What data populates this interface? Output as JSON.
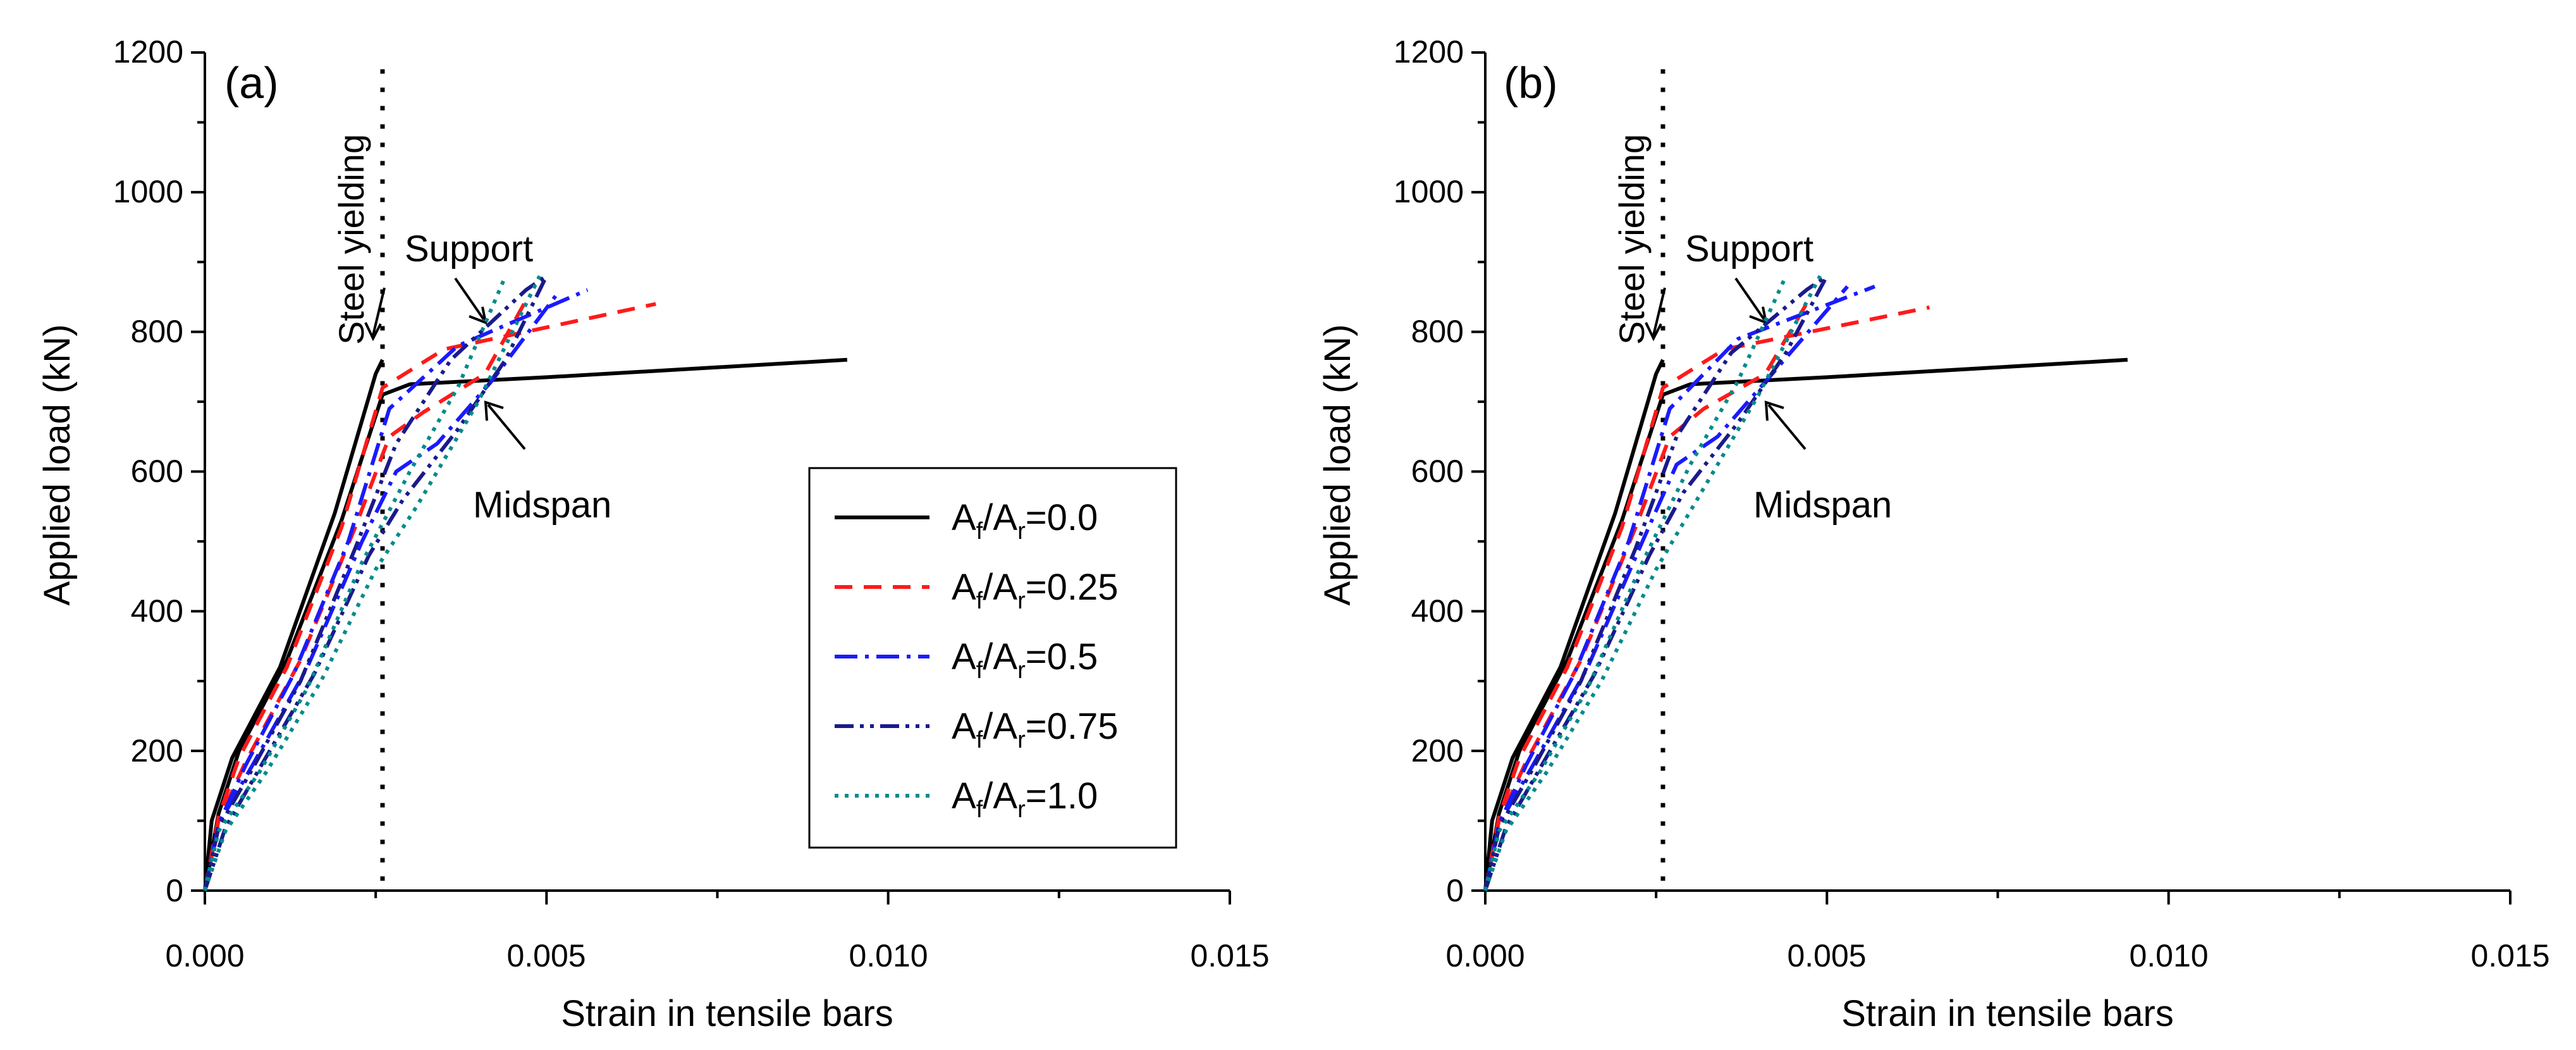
{
  "chart_data": [
    {
      "type": "line",
      "panel_label": "(a)",
      "xlabel": "Strain in tensile bars",
      "ylabel": "Applied load (kN)",
      "xlim": [
        0,
        0.015
      ],
      "ylim": [
        0,
        1200
      ],
      "xticks": [
        "0.000",
        "0.005",
        "0.010",
        "0.015"
      ],
      "yticks": [
        "0",
        "200",
        "400",
        "600",
        "800",
        "1000",
        "1200"
      ],
      "yield_strain": 0.0026,
      "annotations": {
        "yield": "Steel yielding",
        "support": "Support",
        "midspan": "Midspan"
      },
      "legend": {
        "placement": "center-right",
        "entries": [
          {
            "label": "A",
            "sub1": "f",
            "mid": "/A",
            "sub2": "r",
            "value": "=0.0"
          },
          {
            "label": "A",
            "sub1": "f",
            "mid": "/A",
            "sub2": "r",
            "value": "=0.25"
          },
          {
            "label": "A",
            "sub1": "f",
            "mid": "/A",
            "sub2": "r",
            "value": "=0.5"
          },
          {
            "label": "A",
            "sub1": "f",
            "mid": "/A",
            "sub2": "r",
            "value": "=0.75"
          },
          {
            "label": "A",
            "sub1": "f",
            "mid": "/A",
            "sub2": "r",
            "value": "=1.0"
          }
        ]
      },
      "series": [
        {
          "name": "Af/Ar=0.0",
          "color": "#000000",
          "dash": "solid",
          "support": [
            [
              0,
              0
            ],
            [
              0.0001,
              100
            ],
            [
              0.0004,
              190
            ],
            [
              0.0011,
              320
            ],
            [
              0.0019,
              540
            ],
            [
              0.0025,
              740
            ],
            [
              0.0026,
              760
            ]
          ],
          "midspan": [
            [
              0,
              0
            ],
            [
              0.0002,
              110
            ],
            [
              0.0005,
              200
            ],
            [
              0.0012,
              330
            ],
            [
              0.002,
              530
            ],
            [
              0.0026,
              710
            ],
            [
              0.003,
              725
            ],
            [
              0.005,
              735
            ],
            [
              0.0094,
              760
            ]
          ]
        },
        {
          "name": "Af/Ar=0.25",
          "color": "#ff1a1a",
          "dash": "dashed",
          "support": [
            [
              0,
              0
            ],
            [
              0.0002,
              105
            ],
            [
              0.0005,
              190
            ],
            [
              0.0012,
              320
            ],
            [
              0.002,
              520
            ],
            [
              0.0026,
              720
            ],
            [
              0.0035,
              775
            ],
            [
              0.0066,
              840
            ]
          ],
          "midspan": [
            [
              0,
              0
            ],
            [
              0.0002,
              100
            ],
            [
              0.0006,
              185
            ],
            [
              0.0014,
              330
            ],
            [
              0.0022,
              520
            ],
            [
              0.0027,
              650
            ],
            [
              0.0032,
              685
            ],
            [
              0.0041,
              740
            ],
            [
              0.0047,
              845
            ]
          ]
        },
        {
          "name": "Af/Ar=0.5",
          "color": "#1a1aff",
          "dash": "dashdot",
          "support": [
            [
              0,
              0
            ],
            [
              0.0002,
              95
            ],
            [
              0.0006,
              180
            ],
            [
              0.0013,
              310
            ],
            [
              0.0021,
              500
            ],
            [
              0.0027,
              690
            ],
            [
              0.0037,
              780
            ],
            [
              0.0056,
              860
            ]
          ],
          "midspan": [
            [
              0,
              0
            ],
            [
              0.0002,
              95
            ],
            [
              0.0007,
              180
            ],
            [
              0.0015,
              320
            ],
            [
              0.0023,
              500
            ],
            [
              0.0028,
              600
            ],
            [
              0.0034,
              640
            ],
            [
              0.0042,
              730
            ],
            [
              0.0052,
              860
            ]
          ]
        },
        {
          "name": "Af/Ar=0.75",
          "color": "#1a1a8c",
          "dash": "dashdotdot",
          "support": [
            [
              0,
              0
            ],
            [
              0.0002,
              90
            ],
            [
              0.0007,
              175
            ],
            [
              0.0014,
              300
            ],
            [
              0.0022,
              490
            ],
            [
              0.0028,
              640
            ],
            [
              0.0036,
              760
            ],
            [
              0.0047,
              860
            ],
            [
              0.005,
              880
            ]
          ],
          "midspan": [
            [
              0,
              0
            ],
            [
              0.0003,
              90
            ],
            [
              0.0008,
              175
            ],
            [
              0.0016,
              310
            ],
            [
              0.0024,
              480
            ],
            [
              0.0029,
              560
            ],
            [
              0.0037,
              660
            ],
            [
              0.0044,
              760
            ],
            [
              0.005,
              880
            ]
          ]
        },
        {
          "name": "Af/Ar=1.0",
          "color": "#008b8b",
          "dash": "dotted",
          "support": [
            [
              0,
              0
            ],
            [
              0.0002,
              85
            ],
            [
              0.0008,
              170
            ],
            [
              0.0015,
              290
            ],
            [
              0.0023,
              470
            ],
            [
              0.003,
              600
            ],
            [
              0.0037,
              720
            ],
            [
              0.0044,
              880
            ]
          ],
          "midspan": [
            [
              0,
              0
            ],
            [
              0.0003,
              85
            ],
            [
              0.0009,
              170
            ],
            [
              0.0017,
              300
            ],
            [
              0.0025,
              460
            ],
            [
              0.0031,
              550
            ],
            [
              0.004,
              700
            ],
            [
              0.0049,
              880
            ]
          ]
        }
      ]
    },
    {
      "type": "line",
      "panel_label": "(b)",
      "xlabel": "Strain in tensile bars",
      "ylabel": "Applied load (kN)",
      "xlim": [
        0,
        0.015
      ],
      "ylim": [
        0,
        1200
      ],
      "xticks": [
        "0.000",
        "0.005",
        "0.010",
        "0.015"
      ],
      "yticks": [
        "0",
        "200",
        "400",
        "600",
        "800",
        "1000",
        "1200"
      ],
      "yield_strain": 0.0026,
      "annotations": {
        "yield": "Steel yielding",
        "support": "Support",
        "midspan": "Midspan"
      },
      "series": [
        {
          "name": "Af/Ar=0.0",
          "color": "#000000",
          "dash": "solid",
          "support": [
            [
              0,
              0
            ],
            [
              0.0001,
              100
            ],
            [
              0.0004,
              190
            ],
            [
              0.0011,
              320
            ],
            [
              0.0019,
              540
            ],
            [
              0.0025,
              740
            ],
            [
              0.0026,
              760
            ]
          ],
          "midspan": [
            [
              0,
              0
            ],
            [
              0.0002,
              110
            ],
            [
              0.0005,
              200
            ],
            [
              0.0012,
              330
            ],
            [
              0.002,
              530
            ],
            [
              0.0026,
              710
            ],
            [
              0.003,
              725
            ],
            [
              0.005,
              735
            ],
            [
              0.0094,
              760
            ]
          ]
        },
        {
          "name": "Af/Ar=0.25",
          "color": "#ff1a1a",
          "dash": "dashed",
          "support": [
            [
              0,
              0
            ],
            [
              0.0002,
              105
            ],
            [
              0.0005,
              190
            ],
            [
              0.0012,
              320
            ],
            [
              0.002,
              520
            ],
            [
              0.0026,
              720
            ],
            [
              0.0035,
              775
            ],
            [
              0.0065,
              835
            ]
          ],
          "midspan": [
            [
              0,
              0
            ],
            [
              0.0002,
              100
            ],
            [
              0.0006,
              185
            ],
            [
              0.0014,
              330
            ],
            [
              0.0022,
              520
            ],
            [
              0.0027,
              650
            ],
            [
              0.0032,
              690
            ],
            [
              0.0041,
              740
            ],
            [
              0.0047,
              840
            ]
          ]
        },
        {
          "name": "Af/Ar=0.5",
          "color": "#1a1aff",
          "dash": "dashdot",
          "support": [
            [
              0,
              0
            ],
            [
              0.0002,
              95
            ],
            [
              0.0006,
              180
            ],
            [
              0.0013,
              310
            ],
            [
              0.0021,
              500
            ],
            [
              0.0027,
              690
            ],
            [
              0.0037,
              790
            ],
            [
              0.0057,
              865
            ]
          ],
          "midspan": [
            [
              0,
              0
            ],
            [
              0.0002,
              95
            ],
            [
              0.0007,
              180
            ],
            [
              0.0015,
              320
            ],
            [
              0.0023,
              500
            ],
            [
              0.0028,
              610
            ],
            [
              0.0034,
              650
            ],
            [
              0.0042,
              740
            ],
            [
              0.0053,
              865
            ]
          ]
        },
        {
          "name": "Af/Ar=0.75",
          "color": "#1a1a8c",
          "dash": "dashdotdot",
          "support": [
            [
              0,
              0
            ],
            [
              0.0002,
              90
            ],
            [
              0.0007,
              175
            ],
            [
              0.0014,
              300
            ],
            [
              0.0022,
              490
            ],
            [
              0.0028,
              650
            ],
            [
              0.0036,
              770
            ],
            [
              0.0047,
              860
            ],
            [
              0.005,
              880
            ]
          ],
          "midspan": [
            [
              0,
              0
            ],
            [
              0.0003,
              90
            ],
            [
              0.0008,
              175
            ],
            [
              0.0016,
              310
            ],
            [
              0.0024,
              480
            ],
            [
              0.0029,
              570
            ],
            [
              0.0037,
              670
            ],
            [
              0.0044,
              770
            ],
            [
              0.005,
              880
            ]
          ]
        },
        {
          "name": "Af/Ar=1.0",
          "color": "#008b8b",
          "dash": "dotted",
          "support": [
            [
              0,
              0
            ],
            [
              0.0002,
              85
            ],
            [
              0.0008,
              170
            ],
            [
              0.0015,
              290
            ],
            [
              0.0023,
              470
            ],
            [
              0.003,
              610
            ],
            [
              0.0037,
              730
            ],
            [
              0.0044,
              880
            ]
          ],
          "midspan": [
            [
              0,
              0
            ],
            [
              0.0003,
              85
            ],
            [
              0.0009,
              170
            ],
            [
              0.0017,
              300
            ],
            [
              0.0025,
              460
            ],
            [
              0.0031,
              560
            ],
            [
              0.004,
              710
            ],
            [
              0.0049,
              880
            ]
          ]
        }
      ]
    }
  ]
}
